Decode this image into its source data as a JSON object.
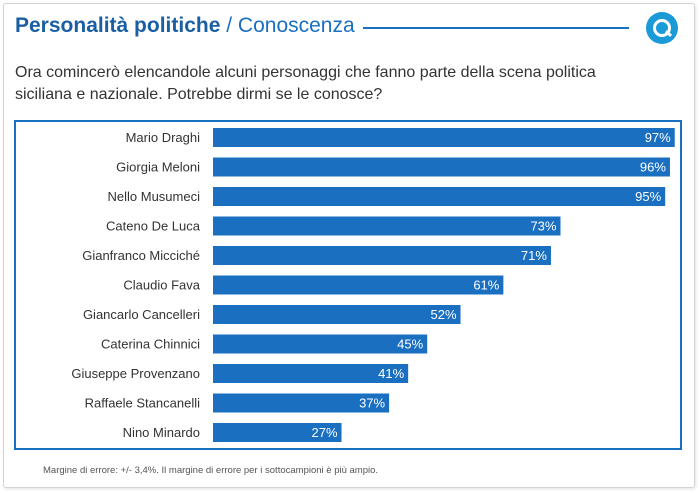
{
  "header": {
    "title_main": "Personalità politiche",
    "title_separator": "/",
    "title_sub": "Conoscenza",
    "logo_icon": "search-circle-icon"
  },
  "question": "Ora comincerò elencandole alcuni personaggi che fanno parte della scena politica siciliana e nazionale. Potrebbe dirmi se le conosce?",
  "footnote": "Margine di errore: +/- 3,4%. Il margine di errore per i sottocampioni è più ampio.",
  "colors": {
    "bar": "#1a6fc1",
    "accent": "#1a6fc1",
    "title": "#1a5fa3",
    "value_label": "#ffffff"
  },
  "chart_data": {
    "type": "bar",
    "orientation": "horizontal",
    "categories": [
      "Mario Draghi",
      "Giorgia Meloni",
      "Nello Musumeci",
      "Cateno De Luca",
      "Gianfranco Micciché",
      "Claudio Fava",
      "Giancarlo Cancelleri",
      "Caterina Chinnici",
      "Giuseppe Provenzano",
      "Raffaele Stancanelli",
      "Nino Minardo"
    ],
    "values": [
      97,
      96,
      95,
      73,
      71,
      61,
      52,
      45,
      41,
      37,
      27
    ],
    "value_labels": [
      "97%",
      "96%",
      "95%",
      "73%",
      "71%",
      "61%",
      "52%",
      "45%",
      "41%",
      "37%",
      "27%"
    ],
    "unit": "%",
    "xlim": [
      0,
      100
    ],
    "grid": false,
    "legend": "none"
  }
}
